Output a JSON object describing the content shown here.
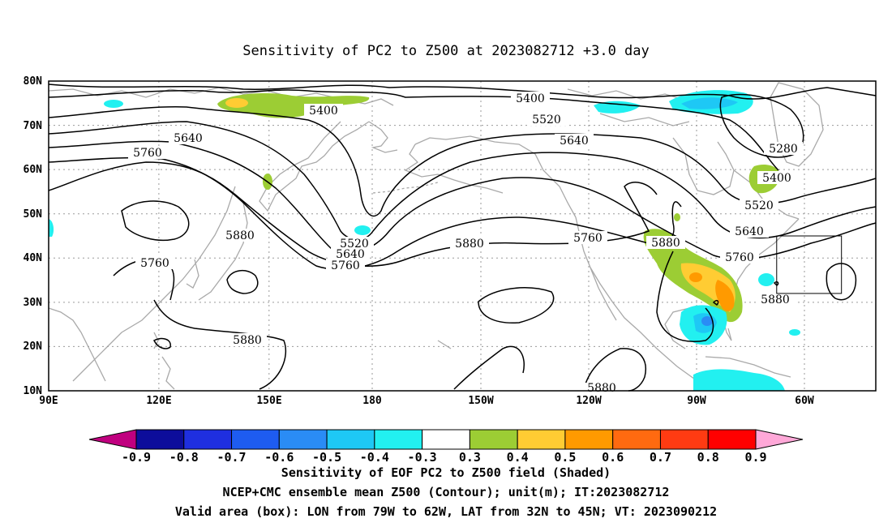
{
  "title": "Sensitivity of PC2 to Z500 at 2023082712 +3.0 day",
  "lat_labels": [
    "80N",
    "70N",
    "60N",
    "50N",
    "40N",
    "30N",
    "20N",
    "10N"
  ],
  "lon_labels": [
    "90E",
    "120E",
    "150E",
    "180",
    "150W",
    "120W",
    "90W",
    "60W"
  ],
  "contour_labels": [
    "5400",
    "5400",
    "5520",
    "5640",
    "5640",
    "5760",
    "5280",
    "5400",
    "5520",
    "5640",
    "5760",
    "5880",
    "5880",
    "5760",
    "5520",
    "5640",
    "5760",
    "5880",
    "5880",
    "5880",
    "5880"
  ],
  "colorbar": {
    "labels": [
      "-0.9",
      "-0.8",
      "-0.7",
      "-0.6",
      "-0.5",
      "-0.4",
      "-0.3",
      "0.3",
      "0.4",
      "0.5",
      "0.6",
      "0.7",
      "0.8",
      "0.9"
    ],
    "colors": [
      "#c0007f",
      "#0d0d9b",
      "#1f2fe0",
      "#1e5cf0",
      "#2a8cf5",
      "#1ec8f5",
      "#22f0f0",
      "#ffffff",
      "#9ccd34",
      "#ffcc33",
      "#ff9a00",
      "#ff6a10",
      "#ff3b12",
      "#ff0000",
      "#ffa8d8"
    ]
  },
  "footer": [
    "Sensitivity of EOF PC2 to Z500 field (Shaded)",
    "NCEP+CMC ensemble mean Z500 (Contour); unit(m); IT:2023082712",
    "Valid area (box): LON from 79W to 62W, LAT from 32N to 45N; VT: 2023090212"
  ],
  "valid_box": {
    "lon_w": -79,
    "lon_e": -62,
    "lat_s": 32,
    "lat_n": 45
  }
}
